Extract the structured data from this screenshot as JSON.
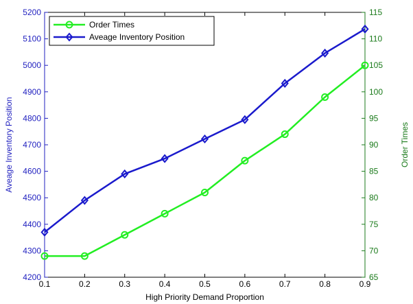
{
  "chart_data": {
    "type": "line",
    "x": [
      0.1,
      0.2,
      0.3,
      0.4,
      0.5,
      0.6,
      0.7,
      0.8,
      0.9
    ],
    "xlabel": "High Priority Demand Proportion",
    "xlim": [
      0.1,
      0.9
    ],
    "x_ticks": [
      "0.1",
      "0.2",
      "0.3",
      "0.4",
      "0.5",
      "0.6",
      "0.7",
      "0.8",
      "0.9"
    ],
    "left_axis": {
      "label": "Aveage Inventory Position",
      "ylim": [
        4200,
        5200
      ],
      "ticks": [
        "4200",
        "4300",
        "4400",
        "4500",
        "4600",
        "4700",
        "4800",
        "4900",
        "5000",
        "5100",
        "5200"
      ],
      "color": "#1f1fbf"
    },
    "right_axis": {
      "label": "Order Times",
      "ylim": [
        65,
        115
      ],
      "ticks": [
        "65",
        "70",
        "75",
        "80",
        "85",
        "90",
        "95",
        "100",
        "105",
        "110",
        "115"
      ],
      "color": "#1a7a1a"
    },
    "series": [
      {
        "name": "Order Times",
        "axis": "right",
        "color": "#22ee22",
        "marker": "circle",
        "values": [
          69,
          69,
          73,
          77,
          81,
          87,
          92,
          99,
          105
        ]
      },
      {
        "name": "Aveage Inventory Position",
        "axis": "left",
        "color": "#1a1acc",
        "marker": "diamond",
        "values": [
          4370,
          4490,
          4590,
          4648,
          4722,
          4795,
          4932,
          5046,
          5137
        ]
      }
    ],
    "legend_position": "top-left",
    "grid": false
  }
}
